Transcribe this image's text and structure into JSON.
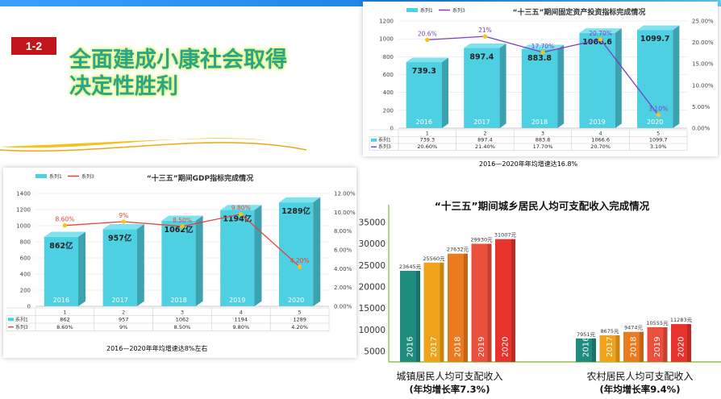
{
  "header": {
    "badge": "1-2",
    "title_line1": "全面建成小康社会取得",
    "title_line2": "决定性胜利",
    "moon_color": "#1e8fa8",
    "title_color": "#2aa58a"
  },
  "captions": {
    "investment": "2016—2020年年均增速达16.8%",
    "gdp": "2016—2020年年均增速达8%左右"
  },
  "chart_data": [
    {
      "type": "bar",
      "title": "“十三五”期间固定资产投资指标完成情况",
      "categories": [
        "1",
        "2",
        "3",
        "4",
        "5"
      ],
      "bar_labels": [
        "2016",
        "2017",
        "2018",
        "2019",
        "2020"
      ],
      "value_labels": [
        "739.3",
        "897.4",
        "883.8",
        "1066.6",
        "1099.7"
      ],
      "series": [
        {
          "name": "系列1",
          "values": [
            739.3,
            897.4,
            883.8,
            1066.6,
            1099.7
          ],
          "color": "#4dd0e1",
          "axis": "left"
        },
        {
          "name": "系列3",
          "values": [
            20.6,
            21.4,
            17.7,
            20.7,
            3.1
          ],
          "labels": [
            "20.6%",
            "21%",
            "17.70%",
            "20.70%",
            "3.10%"
          ],
          "color": "#7b3fc4",
          "axis": "right"
        }
      ],
      "left_ylim": [
        0,
        1200
      ],
      "left_ticks": [
        "0",
        "200",
        "400",
        "600",
        "800",
        "1000",
        "1200"
      ],
      "right_ylim": [
        0,
        25
      ],
      "right_ticks": [
        "0.00%",
        "5.00%",
        "10.00%",
        "15.00%",
        "20.00%",
        "25.00%"
      ],
      "table": [
        {
          "legend": "系列1",
          "cells": [
            "739.3",
            "897.4",
            "883.8",
            "1066.6",
            "1099.7"
          ]
        },
        {
          "legend": "系列3",
          "cells": [
            "20.60%",
            "21.40%",
            "17.70%",
            "20.70%",
            "3.10%"
          ]
        }
      ],
      "legend": "top-left"
    },
    {
      "type": "bar",
      "title": "“十三五”期间GDP指标完成情况",
      "categories": [
        "1",
        "2",
        "3",
        "4",
        "5"
      ],
      "bar_labels": [
        "2016",
        "2017",
        "2018",
        "2019",
        "2020"
      ],
      "value_labels": [
        "862亿",
        "957亿",
        "1062亿",
        "1194亿",
        "1289亿"
      ],
      "series": [
        {
          "name": "系列1",
          "values": [
            862,
            957,
            1062,
            1194,
            1289
          ],
          "color": "#4dd0e1",
          "axis": "left"
        },
        {
          "name": "系列3",
          "values": [
            8.6,
            9.0,
            8.5,
            9.8,
            4.2
          ],
          "labels": [
            "8.60%",
            "9%",
            "8.50%",
            "9.80%",
            "4.20%"
          ],
          "color": "#e8413a",
          "axis": "right"
        }
      ],
      "left_ylim": [
        0,
        1400
      ],
      "left_ticks": [
        "0",
        "200",
        "400",
        "600",
        "800",
        "1000",
        "1200",
        "1400"
      ],
      "right_ylim": [
        0,
        12
      ],
      "right_ticks": [
        "0.00%",
        "2.00%",
        "4.00%",
        "6.00%",
        "8.00%",
        "10.00%",
        "12.00%"
      ],
      "table": [
        {
          "legend": "系列1",
          "cells": [
            "862",
            "957",
            "1062",
            "1194",
            "1289"
          ]
        },
        {
          "legend": "系列3",
          "cells": [
            "8.60%",
            "9%",
            "8.50%",
            "9.80%",
            "4.20%"
          ]
        }
      ],
      "legend": "top-left"
    },
    {
      "type": "bar",
      "title": "“十三五”期间城乡居民人均可支配收入完成情况",
      "groups": [
        {
          "name": "城镇居民人均可支配收入",
          "note": "(年均增长率7.3%)",
          "years": [
            "2016",
            "2017",
            "2018",
            "2019",
            "2020"
          ],
          "values": [
            23645,
            25560,
            27632,
            29930,
            31007
          ],
          "labels": [
            "23645元",
            "25560元",
            "27632元",
            "29930元",
            "31007元"
          ]
        },
        {
          "name": "农村居民人均可支配收入",
          "note": "(年均增长率9.4%)",
          "years": [
            "2016",
            "2017",
            "2018",
            "2019",
            "2020"
          ],
          "values": [
            7951,
            8675,
            9474,
            10555,
            11283
          ],
          "labels": [
            "7951元",
            "8675元",
            "9474元",
            "10555元",
            "11283元"
          ]
        }
      ],
      "bar_colors": [
        "#1e8c7e",
        "#f2a21a",
        "#ec7a1f",
        "#ec4f3c",
        "#e8322c"
      ],
      "ylim": [
        2500,
        37500
      ],
      "y_ticks": [
        "5000",
        "10000",
        "15000",
        "20000",
        "25000",
        "30000",
        "35000"
      ],
      "y_tick_values": [
        5000,
        10000,
        15000,
        20000,
        25000,
        30000,
        35000
      ]
    }
  ]
}
